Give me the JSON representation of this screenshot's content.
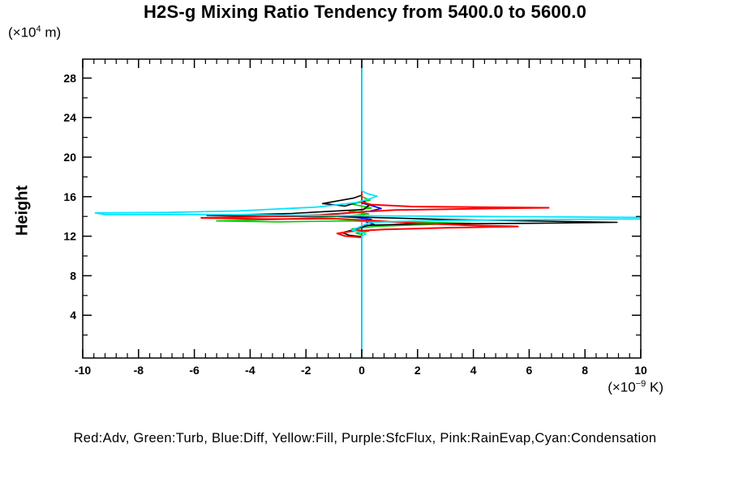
{
  "title": "H2S-g Mixing Ratio Tendency from 5400.0 to 5600.0",
  "y_axis": {
    "title": "Height",
    "unit_prefix": "(×10",
    "unit_exp": "4",
    "unit_suffix": " m)"
  },
  "x_axis": {
    "unit_prefix": "(×10",
    "unit_exp": "−9",
    "unit_suffix": " K)"
  },
  "legend_line": "Red:Adv, Green:Turb, Blue:Diff, Yellow:Fill, Purple:SfcFlux, Pink:RainEvap,Cyan:Condensation",
  "chart_data": {
    "type": "line",
    "title": "H2S-g Mixing Ratio Tendency from 5400.0 to 5600.0",
    "xlabel": "(×10^-9 K)",
    "ylabel": "Height (×10^4 m)",
    "xlim": [
      -10,
      10
    ],
    "ylim": [
      0,
      30
    ],
    "x_major_ticks": [
      -10,
      -8,
      -6,
      -4,
      -2,
      0,
      2,
      4,
      6,
      8,
      10
    ],
    "x_minor_step": 0.4,
    "y_major_ticks": [
      4,
      8,
      12,
      16,
      20,
      24,
      28
    ],
    "y_minor_step": 2,
    "grid": false,
    "legend_position": "bottom",
    "orientation": "vertical-profile (x = tendency value, y = height)",
    "zero_line": {
      "color": "#00E5FF",
      "x": 0
    },
    "series": [
      {
        "name": "Fill",
        "color": "#FFFF00",
        "width": 1.5,
        "points": [
          [
            0,
            29.9
          ],
          [
            0,
            -0.3
          ]
        ]
      },
      {
        "name": "SfcFlux",
        "color": "#A020F0",
        "width": 1.5,
        "points": [
          [
            0,
            29.9
          ],
          [
            0,
            -0.3
          ]
        ]
      },
      {
        "name": "RainEvap",
        "color": "#FF85C2",
        "width": 1.5,
        "points": [
          [
            0,
            29.9
          ],
          [
            0,
            -0.3
          ]
        ]
      },
      {
        "name": "Diff",
        "color": "#0000DD",
        "width": 1.6,
        "points": [
          [
            0,
            29.9
          ],
          [
            0,
            15.35
          ],
          [
            0.35,
            15.1
          ],
          [
            0.7,
            14.8
          ],
          [
            0.3,
            14.55
          ],
          [
            -0.45,
            14.35
          ],
          [
            -1.45,
            14.15
          ],
          [
            -0.9,
            14.0
          ],
          [
            -0.2,
            13.9
          ],
          [
            0.35,
            13.7
          ],
          [
            0.15,
            13.45
          ],
          [
            0.45,
            13.2
          ],
          [
            0.1,
            13.0
          ],
          [
            0,
            12.85
          ],
          [
            0,
            -0.3
          ]
        ]
      },
      {
        "name": "Turb",
        "color": "#00CC00",
        "width": 1.6,
        "points": [
          [
            0,
            29.9
          ],
          [
            0,
            16.0
          ],
          [
            0.3,
            15.65
          ],
          [
            -0.35,
            15.25
          ],
          [
            0.35,
            14.85
          ],
          [
            -0.45,
            14.5
          ],
          [
            0.25,
            14.25
          ],
          [
            -0.5,
            14.05
          ],
          [
            -3.0,
            13.7
          ],
          [
            -5.2,
            13.55
          ],
          [
            -3.0,
            13.45
          ],
          [
            -0.5,
            13.55
          ],
          [
            0.8,
            13.45
          ],
          [
            2.2,
            13.4
          ],
          [
            3.9,
            13.3
          ],
          [
            2.0,
            13.15
          ],
          [
            0.5,
            13.0
          ],
          [
            -0.35,
            12.75
          ],
          [
            0.25,
            12.5
          ],
          [
            -0.2,
            12.3
          ],
          [
            0,
            12.15
          ],
          [
            0,
            -0.3
          ]
        ]
      },
      {
        "name": "Black (unlabeled total)",
        "color": "#000000",
        "width": 1.6,
        "points": [
          [
            0,
            29.9
          ],
          [
            0,
            16.15
          ],
          [
            -0.3,
            15.85
          ],
          [
            -1.4,
            15.3
          ],
          [
            -0.6,
            15.05
          ],
          [
            0.05,
            15.6
          ],
          [
            0.25,
            15.1
          ],
          [
            0.05,
            14.7
          ],
          [
            -2.5,
            14.3
          ],
          [
            -5.55,
            14.1
          ],
          [
            -3.0,
            14.0
          ],
          [
            -0.8,
            14.05
          ],
          [
            0.3,
            13.9
          ],
          [
            3.0,
            13.7
          ],
          [
            6.0,
            13.55
          ],
          [
            9.15,
            13.4
          ],
          [
            6.0,
            13.3
          ],
          [
            2.0,
            13.25
          ],
          [
            0.2,
            13.1
          ],
          [
            -0.25,
            12.7
          ],
          [
            -0.7,
            12.35
          ],
          [
            -0.45,
            12.1
          ],
          [
            0,
            11.95
          ],
          [
            0,
            -0.3
          ]
        ]
      },
      {
        "name": "Adv",
        "color": "#FF0000",
        "width": 2,
        "points": [
          [
            0,
            29.9
          ],
          [
            0,
            15.45
          ],
          [
            0.35,
            15.2
          ],
          [
            1.8,
            15.0
          ],
          [
            6.7,
            14.88
          ],
          [
            4.0,
            14.78
          ],
          [
            1.2,
            14.65
          ],
          [
            0.2,
            14.5
          ],
          [
            -1.5,
            14.15
          ],
          [
            -4.0,
            13.95
          ],
          [
            -5.75,
            13.85
          ],
          [
            -3.5,
            13.73
          ],
          [
            -1.0,
            13.78
          ],
          [
            0.25,
            13.6
          ],
          [
            1.5,
            13.38
          ],
          [
            3.6,
            13.12
          ],
          [
            5.6,
            12.98
          ],
          [
            3.0,
            12.85
          ],
          [
            0.8,
            12.68
          ],
          [
            -0.35,
            12.5
          ],
          [
            -0.88,
            12.28
          ],
          [
            -0.6,
            12.02
          ],
          [
            0,
            11.88
          ],
          [
            0,
            -0.3
          ]
        ]
      },
      {
        "name": "Condensation",
        "color": "#00E5FF",
        "width": 1.8,
        "points": [
          [
            0,
            29.9
          ],
          [
            0,
            16.6
          ],
          [
            0.2,
            16.3
          ],
          [
            0.55,
            16.05
          ],
          [
            0.3,
            15.8
          ],
          [
            -0.2,
            15.4
          ],
          [
            -1.6,
            14.95
          ],
          [
            -4.5,
            14.55
          ],
          [
            -7.0,
            14.4
          ],
          [
            -9.55,
            14.35
          ],
          [
            -9.2,
            14.18
          ],
          [
            -5.0,
            14.2
          ],
          [
            -1.5,
            14.1
          ],
          [
            1.0,
            14.05
          ],
          [
            4.0,
            14.0
          ],
          [
            7.0,
            13.95
          ],
          [
            10,
            13.9
          ],
          [
            10,
            13.75
          ],
          [
            6.0,
            13.68
          ],
          [
            2.0,
            13.55
          ],
          [
            0.3,
            13.4
          ],
          [
            -0.35,
            12.6
          ],
          [
            0.15,
            12.25
          ],
          [
            0,
            12.0
          ],
          [
            0,
            -0.3
          ]
        ]
      }
    ]
  }
}
